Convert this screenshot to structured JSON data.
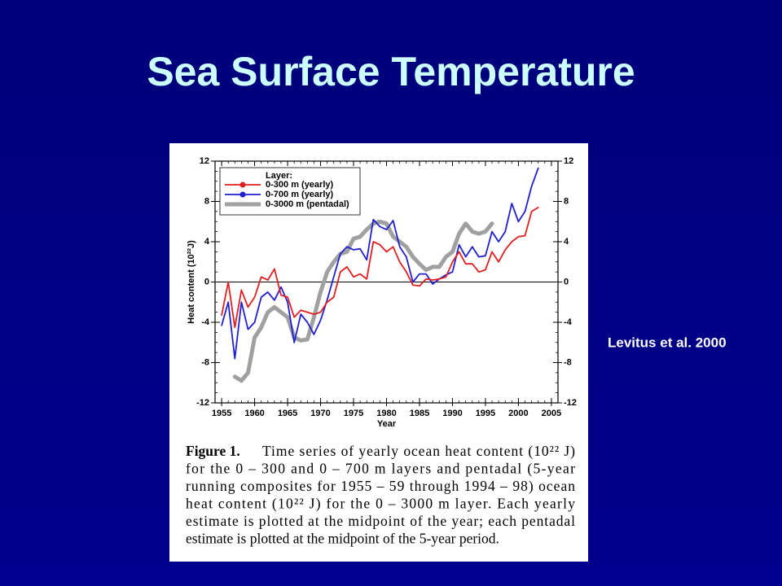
{
  "slide_title": "Sea Surface Temperature",
  "annotation": "Levitus et al. 2000",
  "chart_data": {
    "type": "line",
    "ylabel": "Heat content (10²²J)",
    "xlabel": "Year",
    "legend_title": "Layer:",
    "legend": "upper left",
    "xlim": [
      1954,
      2006
    ],
    "xticks": [
      1955,
      1960,
      1965,
      1970,
      1975,
      1980,
      1985,
      1990,
      1995,
      2000,
      2005
    ],
    "ylim": [
      -12,
      12
    ],
    "yticks": [
      -12,
      -8,
      -4,
      0,
      4,
      8,
      12
    ],
    "series": [
      {
        "name": "0-300 m (yearly)",
        "color": "#e02020",
        "marker": true,
        "x": [
          1955,
          1956,
          1957,
          1958,
          1959,
          1960,
          1961,
          1962,
          1963,
          1964,
          1965,
          1966,
          1967,
          1968,
          1969,
          1970,
          1971,
          1972,
          1973,
          1974,
          1975,
          1976,
          1977,
          1978,
          1979,
          1980,
          1981,
          1982,
          1983,
          1984,
          1985,
          1986,
          1987,
          1988,
          1989,
          1990,
          1991,
          1992,
          1993,
          1994,
          1995,
          1996,
          1997,
          1998,
          1999,
          2000,
          2001,
          2002,
          2003
        ],
        "values": [
          -3.3,
          0,
          -4.5,
          -0.8,
          -2.5,
          -1.5,
          0.5,
          0.2,
          1.3,
          -1.3,
          -1.5,
          -3.5,
          -2.8,
          -3.0,
          -3.2,
          -3.0,
          -2.0,
          -1.5,
          1.0,
          1.5,
          0.5,
          0.8,
          0.3,
          4.0,
          3.7,
          3.0,
          3.5,
          2.0,
          1.0,
          -0.3,
          -0.4,
          0.3,
          0.2,
          0.3,
          0.5,
          2.0,
          3.0,
          1.8,
          1.8,
          1.0,
          1.2,
          3.0,
          2.0,
          3.2,
          4.0,
          4.5,
          4.6,
          7.0,
          7.4
        ]
      },
      {
        "name": "0-700 m (yearly)",
        "color": "#2020d0",
        "marker": true,
        "x": [
          1955,
          1956,
          1957,
          1958,
          1959,
          1960,
          1961,
          1962,
          1963,
          1964,
          1965,
          1966,
          1967,
          1968,
          1969,
          1970,
          1971,
          1972,
          1973,
          1974,
          1975,
          1976,
          1977,
          1978,
          1979,
          1980,
          1981,
          1982,
          1983,
          1984,
          1985,
          1986,
          1987,
          1988,
          1989,
          1990,
          1991,
          1992,
          1993,
          1994,
          1995,
          1996,
          1997,
          1998,
          1999,
          2000,
          2001,
          2002,
          2003
        ],
        "values": [
          -4.3,
          -2.0,
          -7.6,
          -2.0,
          -4.7,
          -4.0,
          -1.5,
          -1.0,
          -1.8,
          -0.5,
          -2.0,
          -6.0,
          -3.2,
          -4.0,
          -5.2,
          -3.8,
          -1.8,
          0.5,
          2.8,
          3.5,
          3.2,
          3.3,
          2.2,
          6.2,
          5.5,
          5.2,
          6.1,
          3.5,
          2.5,
          0.0,
          0.8,
          0.8,
          -0.2,
          0.3,
          0.7,
          1.0,
          3.7,
          2.5,
          3.5,
          2.5,
          2.6,
          5.0,
          4.0,
          5.0,
          7.8,
          6.0,
          7.0,
          9.5,
          11.3
        ]
      },
      {
        "name": "0-3000 m (pentadal)",
        "color": "#a0a0a0",
        "marker": false,
        "x": [
          1957,
          1958,
          1959,
          1960,
          1961,
          1962,
          1963,
          1964,
          1965,
          1966,
          1967,
          1968,
          1969,
          1970,
          1971,
          1972,
          1973,
          1974,
          1975,
          1976,
          1977,
          1978,
          1979,
          1980,
          1981,
          1982,
          1983,
          1984,
          1985,
          1986,
          1987,
          1988,
          1989,
          1990,
          1991,
          1992,
          1993,
          1994,
          1995,
          1996
        ],
        "values": [
          -9.4,
          -9.8,
          -9.0,
          -5.5,
          -4.5,
          -3.0,
          -2.5,
          -3.0,
          -3.5,
          -5.5,
          -5.8,
          -5.7,
          -3.5,
          -1.0,
          1.0,
          2.0,
          2.8,
          3.0,
          4.3,
          4.5,
          5.2,
          5.8,
          6.0,
          5.8,
          4.5,
          4.0,
          3.5,
          2.5,
          1.8,
          1.2,
          1.5,
          1.5,
          2.5,
          3.0,
          4.8,
          5.8,
          5.0,
          4.8,
          5.0,
          5.8
        ]
      }
    ]
  },
  "caption": {
    "label": "Figure 1.",
    "lines": [
      "Time series of yearly ocean heat content (10²² J)",
      "for the 0 – 300 and 0 – 700 m layers and pentadal (5-year",
      "running composites for 1955 – 59 through 1994 – 98) ocean",
      "heat content (10²² J) for the 0 – 3000 m layer. Each yearly",
      "estimate is plotted at the midpoint of the year; each pentadal",
      "estimate is plotted at the midpoint of the 5-year period."
    ]
  }
}
